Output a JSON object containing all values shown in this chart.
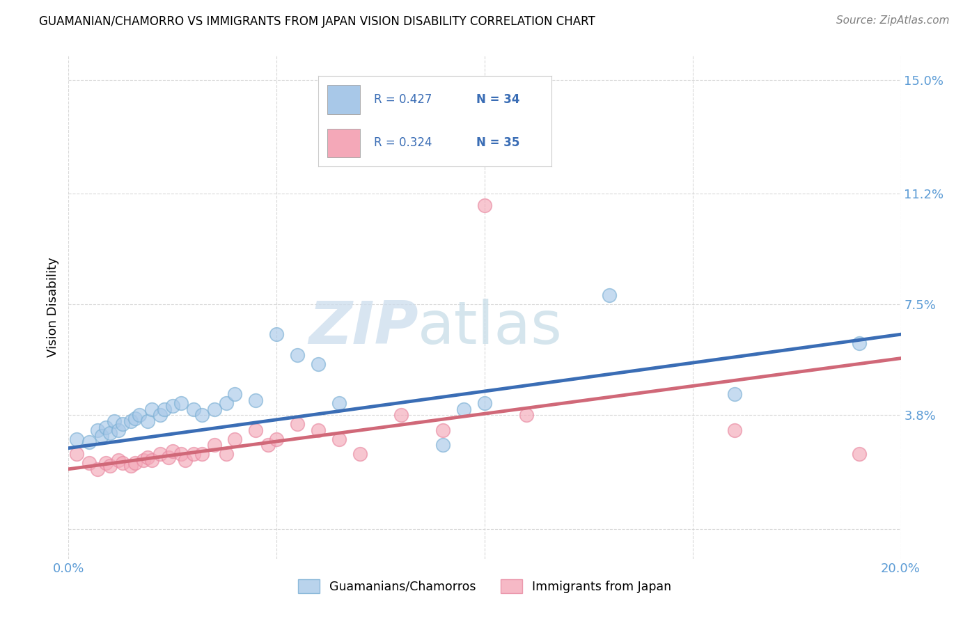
{
  "title": "GUAMANIAN/CHAMORRO VS IMMIGRANTS FROM JAPAN VISION DISABILITY CORRELATION CHART",
  "source": "Source: ZipAtlas.com",
  "ylabel": "Vision Disability",
  "watermark_zip": "ZIP",
  "watermark_atlas": "atlas",
  "xlim": [
    0.0,
    0.2
  ],
  "ylim": [
    -0.01,
    0.158
  ],
  "yticks": [
    0.0,
    0.038,
    0.075,
    0.112,
    0.15
  ],
  "ytick_labels": [
    "",
    "3.8%",
    "7.5%",
    "11.2%",
    "15.0%"
  ],
  "xticks": [
    0.0,
    0.05,
    0.1,
    0.15,
    0.2
  ],
  "xtick_labels": [
    "0.0%",
    "",
    "",
    "",
    "20.0%"
  ],
  "legend_r1": "R = 0.427",
  "legend_n1": "N = 34",
  "legend_r2": "R = 0.324",
  "legend_n2": "N = 35",
  "blue_color": "#a8c8e8",
  "pink_color": "#f4a8b8",
  "blue_edge": "#7aafd4",
  "pink_edge": "#e888a0",
  "line_blue": "#3a6db5",
  "line_pink": "#d06878",
  "blue_scatter_x": [
    0.002,
    0.005,
    0.007,
    0.008,
    0.009,
    0.01,
    0.011,
    0.012,
    0.013,
    0.015,
    0.016,
    0.017,
    0.019,
    0.02,
    0.022,
    0.023,
    0.025,
    0.027,
    0.03,
    0.032,
    0.035,
    0.038,
    0.04,
    0.045,
    0.05,
    0.055,
    0.06,
    0.065,
    0.09,
    0.095,
    0.1,
    0.13,
    0.16,
    0.19
  ],
  "blue_scatter_y": [
    0.03,
    0.029,
    0.033,
    0.031,
    0.034,
    0.032,
    0.036,
    0.033,
    0.035,
    0.036,
    0.037,
    0.038,
    0.036,
    0.04,
    0.038,
    0.04,
    0.041,
    0.042,
    0.04,
    0.038,
    0.04,
    0.042,
    0.045,
    0.043,
    0.065,
    0.058,
    0.055,
    0.042,
    0.028,
    0.04,
    0.042,
    0.078,
    0.045,
    0.062
  ],
  "pink_scatter_x": [
    0.002,
    0.005,
    0.007,
    0.009,
    0.01,
    0.012,
    0.013,
    0.015,
    0.016,
    0.018,
    0.019,
    0.02,
    0.022,
    0.024,
    0.025,
    0.027,
    0.028,
    0.03,
    0.032,
    0.035,
    0.038,
    0.04,
    0.045,
    0.048,
    0.05,
    0.055,
    0.06,
    0.065,
    0.07,
    0.08,
    0.09,
    0.1,
    0.11,
    0.16,
    0.19
  ],
  "pink_scatter_y": [
    0.025,
    0.022,
    0.02,
    0.022,
    0.021,
    0.023,
    0.022,
    0.021,
    0.022,
    0.023,
    0.024,
    0.023,
    0.025,
    0.024,
    0.026,
    0.025,
    0.023,
    0.025,
    0.025,
    0.028,
    0.025,
    0.03,
    0.033,
    0.028,
    0.03,
    0.035,
    0.033,
    0.03,
    0.025,
    0.038,
    0.033,
    0.108,
    0.038,
    0.033,
    0.025
  ],
  "blue_line_x": [
    0.0,
    0.2
  ],
  "blue_line_y": [
    0.027,
    0.065
  ],
  "pink_line_x": [
    0.0,
    0.2
  ],
  "pink_line_y": [
    0.02,
    0.057
  ],
  "legend_label_blue": "Guamanians/Chamorros",
  "legend_label_pink": "Immigrants from Japan",
  "background_color": "#ffffff",
  "grid_color": "#d0d0d0",
  "tick_color": "#5b9bd5",
  "title_color": "#000000",
  "source_color": "#808080"
}
